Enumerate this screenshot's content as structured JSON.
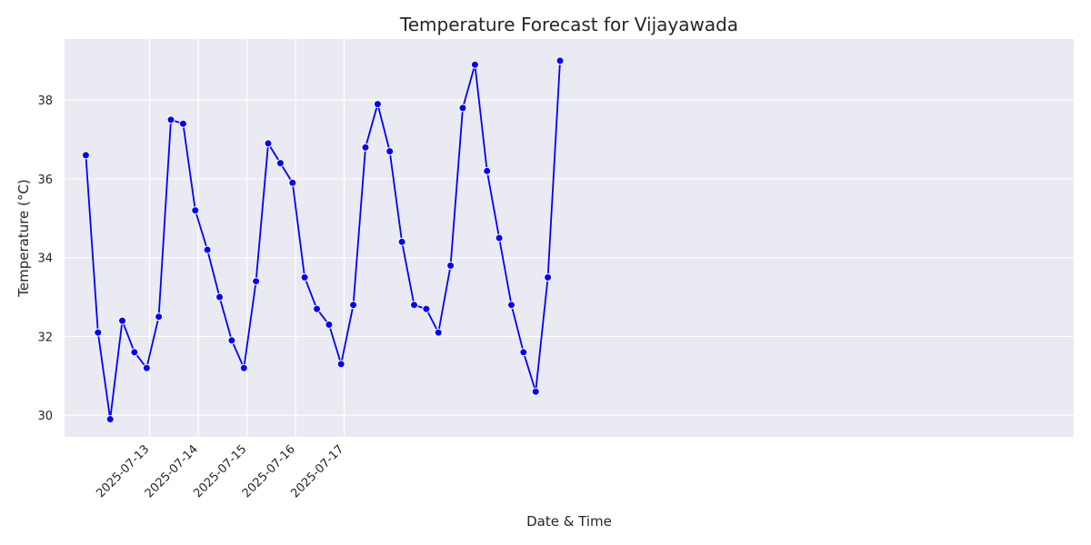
{
  "chart_data": {
    "type": "line",
    "title": "Temperature Forecast for Vijayawada",
    "xlabel": "Date & Time",
    "ylabel": "Temperature (°C)",
    "x_tick_labels": [
      "2025-07-13",
      "2025-07-14",
      "2025-07-15",
      "2025-07-16",
      "2025-07-17"
    ],
    "y_ticks": [
      30,
      32,
      34,
      36,
      38
    ],
    "ylim": [
      29.45,
      39.55
    ],
    "xlim_hours": [
      -42,
      456
    ],
    "x_hours_from_2025_07_13": [
      -31.5,
      -25.5,
      -19.5,
      -13.5,
      -7.5,
      -1.5,
      4.5,
      10.5,
      16.5,
      22.5,
      28.5,
      34.5,
      40.5,
      46.5,
      52.5,
      58.5,
      64.5,
      70.5,
      76.5,
      82.5,
      88.5,
      94.5,
      100.5,
      106.5,
      112.5,
      118.5,
      124.5,
      130.5,
      136.5,
      142.5,
      148.5,
      154.5,
      160.5,
      166.5,
      172.5,
      178.5,
      184.5,
      190.5,
      196.5,
      202.5
    ],
    "series": [
      {
        "name": "Temperature",
        "color": "#0000ff",
        "values": [
          36.6,
          32.1,
          29.9,
          32.4,
          31.6,
          31.2,
          32.5,
          37.5,
          37.4,
          35.2,
          34.2,
          33.0,
          31.9,
          31.2,
          33.4,
          36.9,
          36.4,
          35.9,
          33.5,
          32.7,
          32.3,
          31.3,
          32.8,
          36.8,
          37.9,
          36.7,
          34.4,
          32.8,
          32.7,
          32.1,
          33.8,
          37.8,
          38.9,
          36.2,
          34.5,
          32.8,
          31.6,
          30.6,
          33.5,
          39.0
        ]
      }
    ],
    "grid": true,
    "colors": {
      "background": "#eaeaf2",
      "grid": "#ffffff",
      "line": "#0000ff"
    }
  }
}
